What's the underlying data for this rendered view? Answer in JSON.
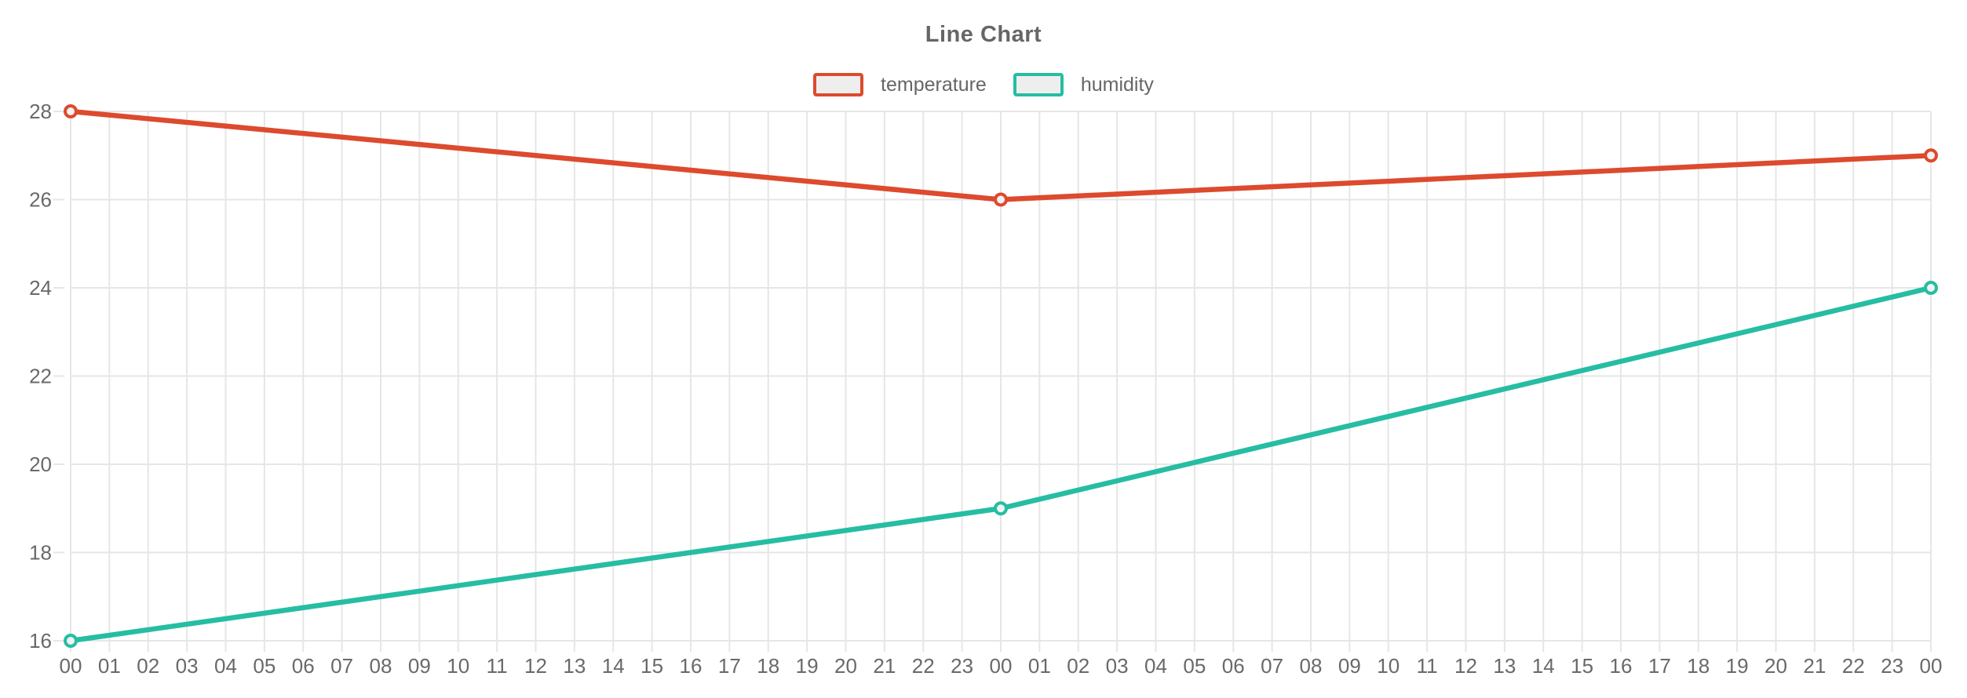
{
  "page": {
    "background": "#ffffff"
  },
  "chart_data": {
    "type": "line",
    "title": "Line Chart",
    "xlabel": "",
    "ylabel": "",
    "x_labels": [
      "00",
      "01",
      "02",
      "03",
      "04",
      "05",
      "06",
      "07",
      "08",
      "09",
      "10",
      "11",
      "12",
      "13",
      "14",
      "15",
      "16",
      "17",
      "18",
      "19",
      "20",
      "21",
      "22",
      "23",
      "00",
      "01",
      "02",
      "03",
      "04",
      "05",
      "06",
      "07",
      "08",
      "09",
      "10",
      "11",
      "12",
      "13",
      "14",
      "15",
      "16",
      "17",
      "18",
      "19",
      "20",
      "21",
      "22",
      "23",
      "00"
    ],
    "y_ticks": [
      16,
      18,
      20,
      22,
      24,
      26,
      28
    ],
    "ylim": [
      16,
      28
    ],
    "grid": true,
    "legend": {
      "position": "top",
      "entries": [
        "temperature",
        "humidity"
      ]
    },
    "series": [
      {
        "name": "temperature",
        "color": "#dd4a2e",
        "points": [
          {
            "x_index": 0,
            "y": 28
          },
          {
            "x_index": 24,
            "y": 26
          },
          {
            "x_index": 48,
            "y": 27
          }
        ]
      },
      {
        "name": "humidity",
        "color": "#26bda3",
        "points": [
          {
            "x_index": 0,
            "y": 16
          },
          {
            "x_index": 24,
            "y": 19
          },
          {
            "x_index": 48,
            "y": 24
          }
        ]
      }
    ],
    "style": {
      "grid_color": "#e6e6e6",
      "tick_text_color": "#696969",
      "title_color": "#666666",
      "marker_fill": "#f2f2f2",
      "legend_swatch_fill": "#eeeeee"
    }
  }
}
